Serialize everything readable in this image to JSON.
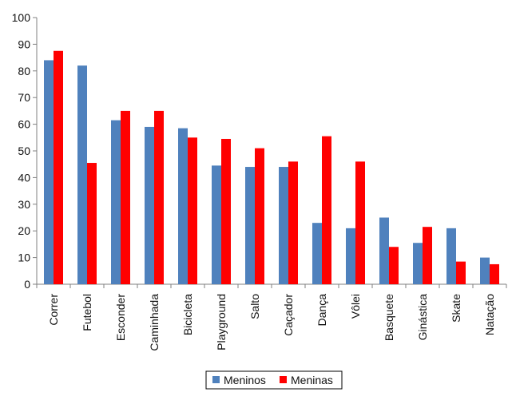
{
  "chart_data": {
    "type": "bar",
    "title": "",
    "xlabel": "",
    "ylabel": "",
    "ylim": [
      0,
      100
    ],
    "yticks": [
      0,
      10,
      20,
      30,
      40,
      50,
      60,
      70,
      80,
      90,
      100
    ],
    "grid": false,
    "legend_position": "bottom",
    "categories": [
      "Correr",
      "Futebol",
      "Esconder",
      "Caminhada",
      "Bicicleta",
      "Playground",
      "Salto",
      "Caçador",
      "Dança",
      "Vôlei",
      "Basquete",
      "Ginástica",
      "Skate",
      "Natação"
    ],
    "series": [
      {
        "name": "Meninos",
        "color": "#4F81BD",
        "values": [
          84,
          82,
          61.5,
          59,
          58.5,
          44.5,
          44,
          44,
          23,
          21,
          25,
          15.5,
          21,
          10
        ]
      },
      {
        "name": "Meninas",
        "color": "#FF0000",
        "values": [
          87.5,
          45.5,
          65,
          65,
          55,
          54.5,
          51,
          46,
          55.5,
          46,
          14,
          21.5,
          8.5,
          7.5
        ]
      }
    ]
  }
}
